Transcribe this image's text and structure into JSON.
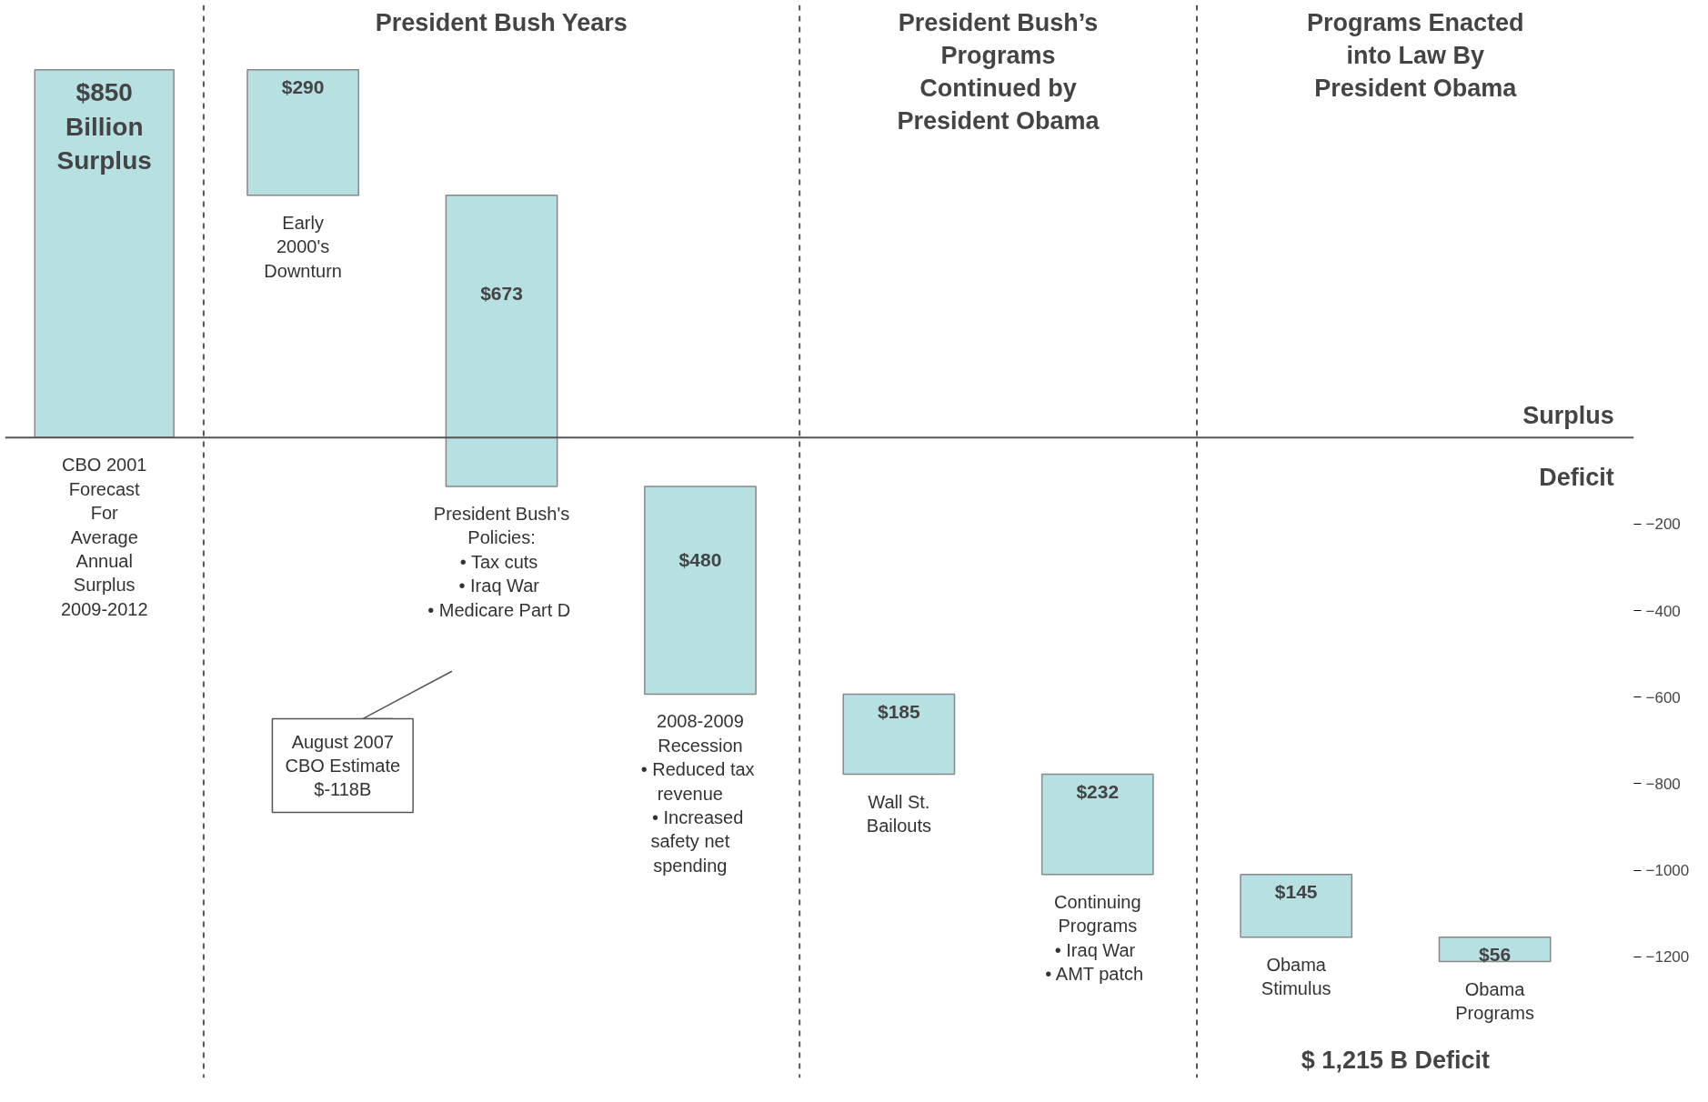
{
  "chart_data": {
    "type": "bar",
    "categories": [
      "CBO 2001\nForecast\nFor\nAverage\nAnnual\nSurplus\n2009-2012",
      "Early\n2000's\nDownturn",
      "President Bush's\nPolicies:\n•  Tax cuts\n•  Iraq War\n•  Medicare Part D",
      "2008-2009\nRecession\n•  Reduced tax\n    revenue\n•  Increased\n    safety net\n    spending",
      "Wall St.\nBailouts",
      "Continuing\nPrograms\n•  Iraq War\n•  AMT patch",
      "Obama\nStimulus",
      "Obama\nPrograms"
    ],
    "values": [
      850,
      -290,
      -673,
      -480,
      -185,
      -232,
      -145,
      -56
    ],
    "base": [
      0,
      850,
      560,
      -113,
      -593,
      -778,
      -1010,
      -1155
    ],
    "value_labels": [
      "$850\nBillion\nSurplus",
      "$290",
      "$673",
      "$480",
      "$185",
      "$232",
      "$145",
      "$56"
    ],
    "color": "#b7e0e3",
    "ylim": [
      -1480,
      1000
    ],
    "yticks": [
      -200,
      -400,
      -600,
      -800,
      -1000,
      -1200
    ],
    "annotations": [
      "President Bush Years",
      "President Bush’s\nPrograms\nContinued by\nPresident Obama",
      "Programs Enacted\ninto Law By\nPresident Obama",
      "Surplus",
      "Deficit",
      "$ 1,215 B Deficit",
      "August 2007\nCBO Estimate\n$-118B"
    ],
    "grid": false
  }
}
